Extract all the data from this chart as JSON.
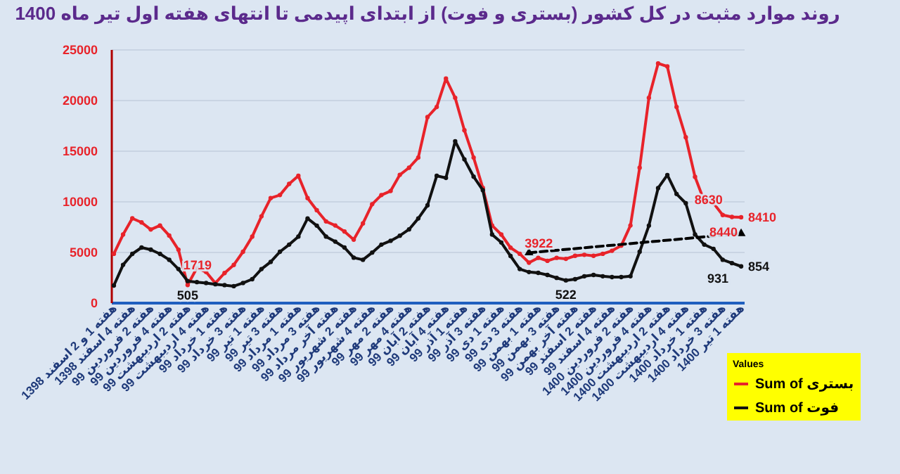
{
  "chart_data": {
    "type": "line",
    "title": "روند موارد مثبت در کل کشور (بستری و فوت) از ابتدای اپیدمی تا انتهای هفته اول تیر ماه 1400",
    "legend_title": "Values",
    "legend": "bottom right",
    "grid": "y",
    "marker": "circle",
    "categories": [
      "هفته 1 و 2 اسفند 1398",
      null,
      "هفته 4 اسفند 1398",
      null,
      "هفته 2 فروردین 99",
      null,
      "هفته 4 فروردین 99",
      null,
      "هفته 2 اردیبهشت 99",
      null,
      "هفته 4 اردیبهشت 99",
      null,
      "هفته 1 خرداد 99",
      null,
      "هفته 3 خرداد 99",
      null,
      "هفته 1 تیر 99",
      null,
      "هفته 3 تیر 99",
      null,
      "هفته 1 مرداد 99",
      null,
      "هفته 3 مرداد 99",
      null,
      "هفته آخر مرداد 99",
      null,
      "هفته 2 شهریور 99",
      null,
      "هفته 4 شهریور 99",
      null,
      "هفته 2 مهر 99",
      null,
      "هفته 4 مهر 99",
      null,
      "هفته 2 آبان 99",
      null,
      "هفته 4 آبان 99",
      null,
      "هفته 1 آذر 99",
      null,
      "هفته 3 آذر 99",
      null,
      "هفته 1 دی 99",
      null,
      "هفته 3 دی 99",
      null,
      "هفته 1 بهمن 99",
      null,
      "هفته 3 بهمن 99",
      null,
      "هفته آخر بهمن 99",
      null,
      "هفته 2 اسفند 99",
      null,
      "هفته 4 اسفند 99",
      null,
      "هفته 2 فروردین 1400",
      null,
      "هفته 4 فروردین 1400",
      null,
      "هفته 2 اردیبهشت 1400",
      null,
      "هفته 4 اردیبهشت 1400",
      null,
      "هفته 1 خرداد 1400",
      null,
      "هفته 3 خرداد 1400",
      null,
      "هفته 1 تیر 1400"
    ],
    "ylim": [
      0,
      25000
    ],
    "yticks": [
      0,
      5000,
      10000,
      15000,
      20000,
      25000
    ],
    "y2lim": [
      0,
      6000
    ],
    "series": [
      {
        "name": "Sum of بستری",
        "color": "#e8232a",
        "values": [
          4800,
          6700,
          8300,
          7900,
          7200,
          7600,
          6600,
          5200,
          1719,
          3400,
          3000,
          1900,
          2900,
          3700,
          5000,
          6500,
          8500,
          10300,
          10600,
          11700,
          12500,
          10300,
          9100,
          8000,
          7600,
          7000,
          6200,
          7800,
          9700,
          10600,
          11000,
          12600,
          13300,
          14300,
          18300,
          19300,
          22100,
          20200,
          17000,
          14300,
          11300,
          7600,
          6700,
          5400,
          4800,
          3922,
          4400,
          4100,
          4400,
          4300,
          4600,
          4700,
          4600,
          4800,
          5100,
          5600,
          7600,
          13300,
          20200,
          23600,
          23300,
          19300,
          16300,
          12400,
          10000,
          9800,
          8630,
          8440,
          8410
        ],
        "value_labels": [
          null,
          null,
          null,
          null,
          null,
          null,
          null,
          null,
          "1719",
          null,
          null,
          null,
          null,
          null,
          null,
          null,
          null,
          null,
          null,
          null,
          null,
          null,
          null,
          null,
          null,
          null,
          null,
          null,
          null,
          null,
          null,
          null,
          null,
          null,
          null,
          null,
          null,
          null,
          null,
          null,
          null,
          null,
          null,
          null,
          null,
          "3922",
          null,
          null,
          null,
          null,
          null,
          null,
          null,
          null,
          null,
          null,
          null,
          null,
          null,
          null,
          null,
          null,
          null,
          null,
          null,
          null,
          "8630",
          "8440",
          "8410"
        ]
      },
      {
        "name": "Sum of فوت",
        "color": "#111111",
        "axis": "y2",
        "values": [
          400,
          890,
          1150,
          1300,
          1250,
          1150,
          1010,
          790,
          505,
          480,
          460,
          430,
          410,
          385,
          460,
          550,
          790,
          960,
          1200,
          1370,
          1560,
          1990,
          1820,
          1560,
          1440,
          1300,
          1060,
          1010,
          1180,
          1370,
          1460,
          1580,
          1730,
          1990,
          2300,
          3000,
          2950,
          3820,
          3390,
          2980,
          2660,
          1610,
          1420,
          1100,
          790,
          720,
          700,
          650,
          580,
          522,
          550,
          620,
          650,
          620,
          600,
          600,
          620,
          1200,
          1820,
          2710,
          3020,
          2570,
          2350,
          1610,
          1370,
          1270,
          1010,
          931,
          854
        ],
        "value_labels": [
          null,
          null,
          null,
          null,
          null,
          null,
          null,
          null,
          "505",
          null,
          null,
          null,
          null,
          null,
          null,
          null,
          null,
          null,
          null,
          null,
          null,
          null,
          null,
          null,
          null,
          null,
          null,
          null,
          null,
          null,
          null,
          null,
          null,
          null,
          null,
          null,
          null,
          null,
          null,
          null,
          null,
          null,
          null,
          null,
          null,
          null,
          null,
          null,
          null,
          "522",
          null,
          null,
          null,
          null,
          null,
          null,
          null,
          null,
          null,
          null,
          null,
          null,
          null,
          null,
          null,
          null,
          null,
          "931",
          "854"
        ]
      },
      {
        "type": "line",
        "color": "#000000",
        "line_style": "dashed",
        "marker": "triangle",
        "values": [
          null,
          null,
          null,
          null,
          null,
          null,
          null,
          null,
          null,
          null,
          null,
          null,
          null,
          null,
          null,
          null,
          null,
          null,
          null,
          null,
          null,
          null,
          null,
          null,
          null,
          null,
          null,
          null,
          null,
          null,
          null,
          null,
          null,
          null,
          null,
          null,
          null,
          null,
          null,
          null,
          null,
          null,
          null,
          null,
          null,
          4900,
          null,
          null,
          null,
          null,
          null,
          null,
          null,
          null,
          null,
          null,
          null,
          null,
          null,
          null,
          null,
          null,
          null,
          null,
          null,
          null,
          null,
          null,
          6800
        ]
      }
    ]
  }
}
